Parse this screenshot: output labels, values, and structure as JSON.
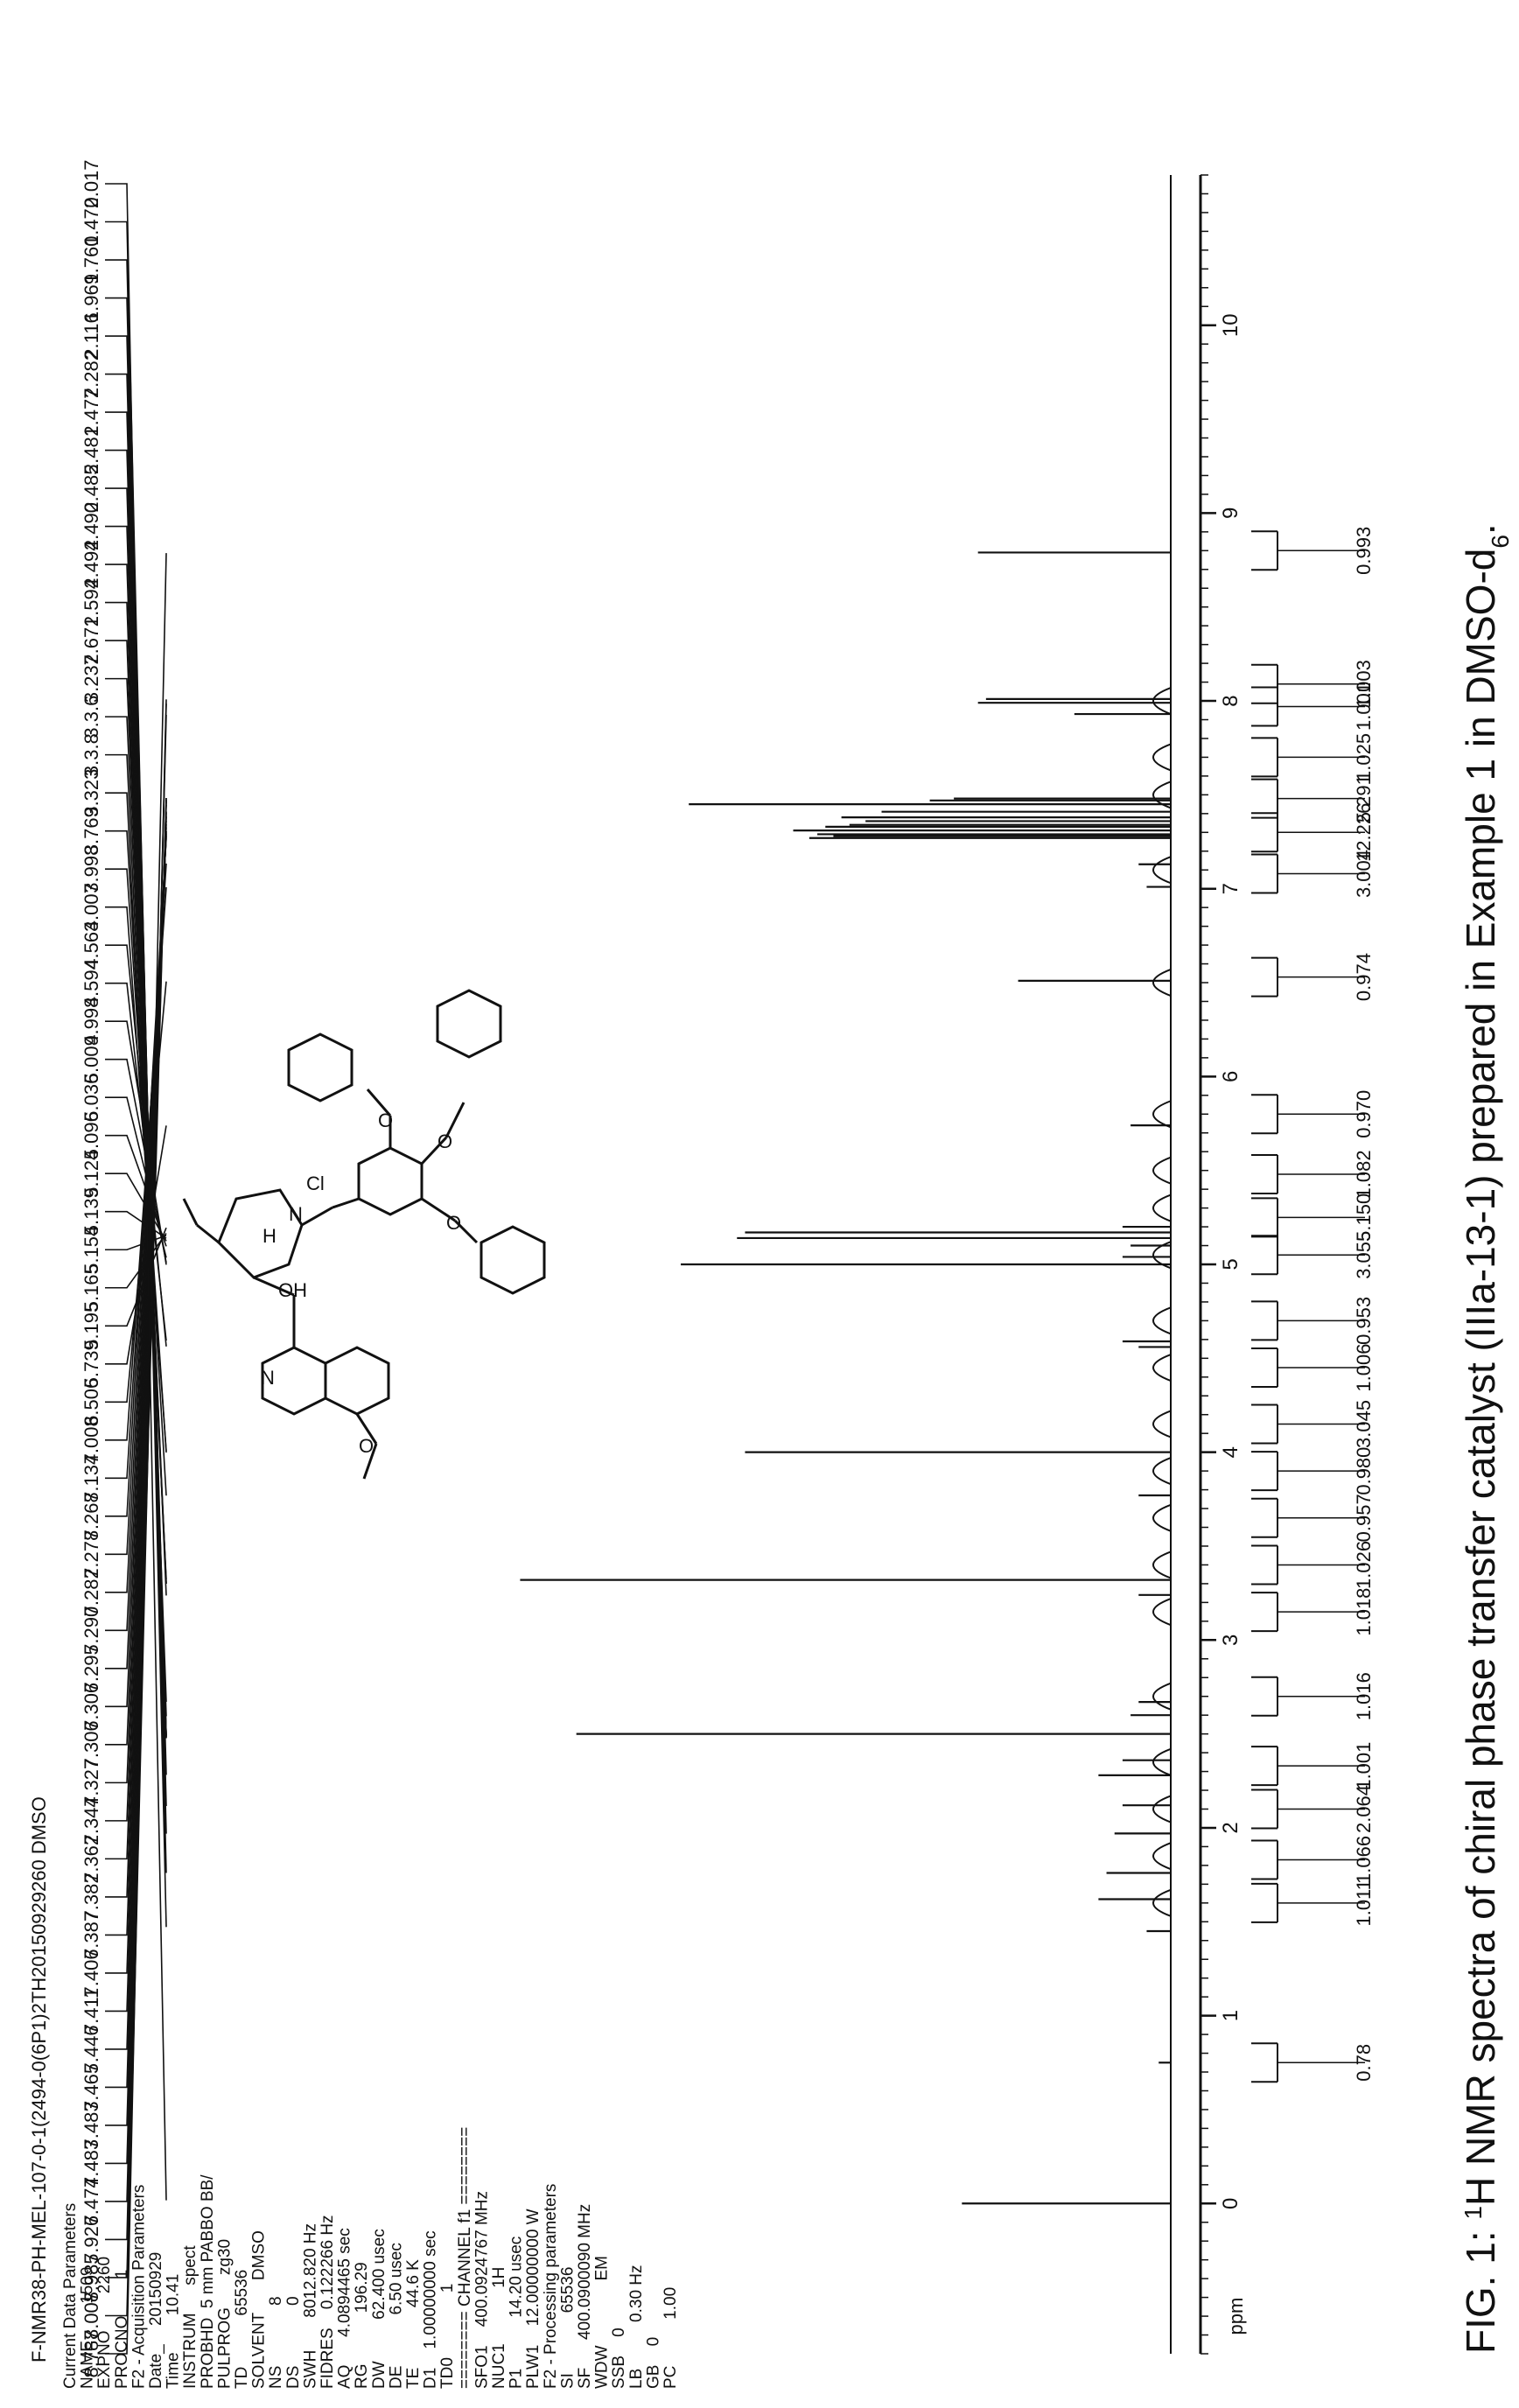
{
  "caption": {
    "prefix": "FIG. 1: ",
    "sup": "1",
    "main": "H NMR spectra of chiral phase transfer catalyst (IIIa-13-1) prepared in Example 1 in DMSO-d",
    "sub": "6",
    "suffix": "."
  },
  "header_line": "F-NMR38-PH-MEL-107-0-1(2494-0(6P1)2TH20150929260 DMSO",
  "acquisition_params": [
    "Current Data Parameters",
    "NAME        1509",
    "EXPNO        2260",
    "PROCNO        1",
    "F2 - Acquisition Parameters",
    "Date_    20150929",
    "Time        10.41",
    "INSTRUM      spect",
    "PROBHD  5 mm PABBO BB/",
    "PULPROG       zg30",
    "TD           65536",
    "SOLVENT       DMSO",
    "NS             8",
    "DS             0",
    "SWH       8012.820 Hz",
    "FIDRES    0.122266 Hz",
    "AQ      4.0894465 sec",
    "RG           196.29",
    "DW         62.400 usec",
    "DE           6.50 usec",
    "TE             44.6 K",
    "D1    1.00000000 sec",
    "TD0              1",
    "======== CHANNEL f1 ========",
    "SFO1    400.0924767 MHz",
    "NUC1            1H",
    "P1           14.20 usec",
    "PLW1    12.00000000 W",
    "F2 - Processing parameters",
    "SI             65536",
    "SF      400.0900090 MHz",
    "WDW              EM",
    "SSB    0",
    "LB          0.30 Hz",
    "GB    0",
    "PC          1.00"
  ],
  "peak_labels": [
    "8.787",
    "8.008",
    "7.985",
    "7.926",
    "7.474",
    "7.483",
    "7.483",
    "7.465",
    "7.446",
    "7.411",
    "7.406",
    "7.387",
    "7.382",
    "7.362",
    "7.344",
    "7.327",
    "7.306",
    "7.306",
    "7.295",
    "7.290",
    "7.282",
    "7.278",
    "7.268",
    "7.134",
    "7.008",
    "6.506",
    "5.739",
    "5.195",
    "5.165",
    "5.154",
    "5.139",
    "5.124",
    "5.096",
    "5.036",
    "5.009",
    "4.998",
    "4.594",
    "4.563",
    "4.007",
    "3.998",
    "3.769",
    "3.323",
    "3.3.8",
    "3.3.6",
    "3.237",
    "2.671",
    "2.594",
    "2.494",
    "2.490",
    "2.485",
    "2.481",
    "2.477",
    "2.282",
    "2.116",
    "1.969",
    "1.760",
    "1.472",
    "0.017"
  ],
  "structure": {
    "labels": {
      "n_ring": "N",
      "oh": "OH",
      "h": "H",
      "n_plus": "N",
      "cl": "Cl",
      "o1": "O",
      "o2": "O",
      "o3": "O",
      "o4": "O"
    }
  },
  "chart_data": {
    "type": "line",
    "xlabel": "ppm",
    "x_reversed": true,
    "xlim": [
      -0.8,
      10.8
    ],
    "ylim": [
      0,
      100
    ],
    "x_ticks": [
      0,
      1,
      2,
      3,
      4,
      5,
      6,
      7,
      8,
      9,
      10
    ],
    "peaks": [
      {
        "ppm": 0.0,
        "height": 26
      },
      {
        "ppm": 0.75,
        "height": 1.5
      },
      {
        "ppm": 1.45,
        "height": 3.0
      },
      {
        "ppm": 1.62,
        "height": 9
      },
      {
        "ppm": 1.76,
        "height": 8
      },
      {
        "ppm": 1.97,
        "height": 7
      },
      {
        "ppm": 2.12,
        "height": 6
      },
      {
        "ppm": 2.28,
        "height": 9
      },
      {
        "ppm": 2.36,
        "height": 6
      },
      {
        "ppm": 2.5,
        "height": 74
      },
      {
        "ppm": 2.6,
        "height": 5
      },
      {
        "ppm": 2.67,
        "height": 4
      },
      {
        "ppm": 3.24,
        "height": 4
      },
      {
        "ppm": 3.32,
        "height": 81
      },
      {
        "ppm": 3.77,
        "height": 4
      },
      {
        "ppm": 4.0,
        "height": 53
      },
      {
        "ppm": 4.56,
        "height": 4
      },
      {
        "ppm": 4.59,
        "height": 6
      },
      {
        "ppm": 5.0,
        "height": 61
      },
      {
        "ppm": 5.04,
        "height": 6
      },
      {
        "ppm": 5.1,
        "height": 5
      },
      {
        "ppm": 5.14,
        "height": 54
      },
      {
        "ppm": 5.17,
        "height": 53
      },
      {
        "ppm": 5.2,
        "height": 6
      },
      {
        "ppm": 5.74,
        "height": 5
      },
      {
        "ppm": 6.51,
        "height": 19
      },
      {
        "ppm": 7.01,
        "height": 3
      },
      {
        "ppm": 7.13,
        "height": 4
      },
      {
        "ppm": 7.27,
        "height": 45
      },
      {
        "ppm": 7.28,
        "height": 42
      },
      {
        "ppm": 7.29,
        "height": 44
      },
      {
        "ppm": 7.31,
        "height": 47
      },
      {
        "ppm": 7.33,
        "height": 43
      },
      {
        "ppm": 7.34,
        "height": 40
      },
      {
        "ppm": 7.36,
        "height": 38
      },
      {
        "ppm": 7.38,
        "height": 41
      },
      {
        "ppm": 7.41,
        "height": 36
      },
      {
        "ppm": 7.45,
        "height": 60
      },
      {
        "ppm": 7.47,
        "height": 30
      },
      {
        "ppm": 7.48,
        "height": 27
      },
      {
        "ppm": 7.93,
        "height": 12
      },
      {
        "ppm": 7.99,
        "height": 24
      },
      {
        "ppm": 8.01,
        "height": 23
      },
      {
        "ppm": 8.79,
        "height": 24
      }
    ],
    "integrals": [
      {
        "ppm": 0.75,
        "value": "0.78"
      },
      {
        "ppm": 1.6,
        "value": "1.011"
      },
      {
        "ppm": 1.83,
        "value": "1.066"
      },
      {
        "ppm": 2.1,
        "value": "2.064"
      },
      {
        "ppm": 2.33,
        "value": "1.001"
      },
      {
        "ppm": 2.7,
        "value": "1.016"
      },
      {
        "ppm": 3.15,
        "value": "1.018"
      },
      {
        "ppm": 3.4,
        "value": "1.026"
      },
      {
        "ppm": 3.65,
        "value": "0.957"
      },
      {
        "ppm": 3.9,
        "value": "0.980"
      },
      {
        "ppm": 4.15,
        "value": "3.045"
      },
      {
        "ppm": 4.45,
        "value": "1.006"
      },
      {
        "ppm": 4.7,
        "value": "0.953"
      },
      {
        "ppm": 5.05,
        "value": "3.055"
      },
      {
        "ppm": 5.25,
        "value": "5.150"
      },
      {
        "ppm": 5.48,
        "value": "1.082"
      },
      {
        "ppm": 5.8,
        "value": "0.970"
      },
      {
        "ppm": 6.53,
        "value": "0.974"
      },
      {
        "ppm": 7.08,
        "value": "3.004"
      },
      {
        "ppm": 7.3,
        "value": "12.226"
      },
      {
        "ppm": 7.48,
        "value": "5.291"
      },
      {
        "ppm": 7.7,
        "value": "1.025"
      },
      {
        "ppm": 7.97,
        "value": "1.001"
      },
      {
        "ppm": 8.09,
        "value": "1.003"
      },
      {
        "ppm": 8.8,
        "value": "0.993"
      }
    ]
  }
}
